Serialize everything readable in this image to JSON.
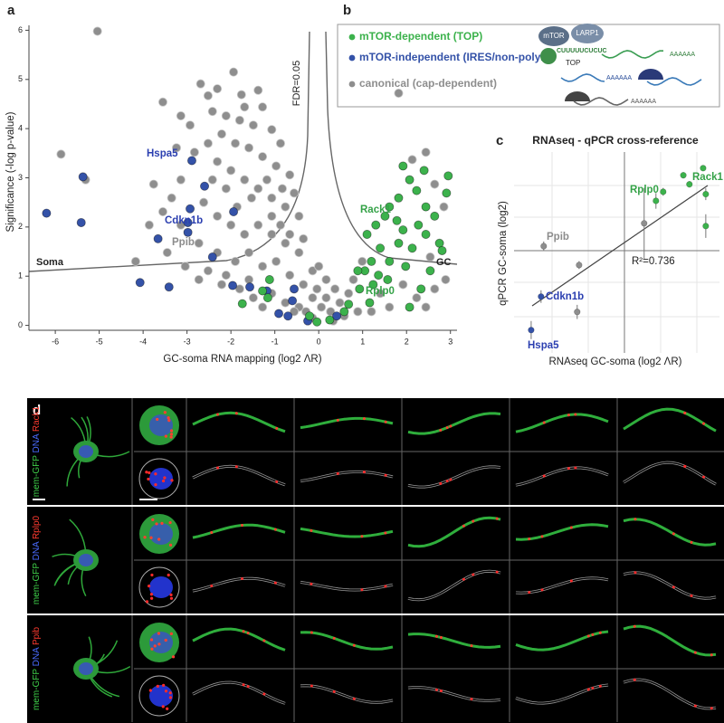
{
  "panel_labels": [
    "a",
    "b",
    "c",
    "d"
  ],
  "chart_data": [
    {
      "type": "scatter",
      "xlabel": "GC-soma RNA mapping (log2 ΛR)",
      "ylabel": "Significance (-log p-value)",
      "xlim": [
        -6.6,
        3.15
      ],
      "ylim": [
        -0.1,
        6.1
      ],
      "xticks": [
        -6,
        -5,
        -4,
        -3,
        -2,
        -1,
        0,
        1,
        2,
        3
      ],
      "yticks": [
        0,
        1,
        2,
        3,
        4,
        5,
        6
      ],
      "threshold_label": "FDR=0.05",
      "side_labels": [
        "Soma",
        "GC"
      ],
      "annotations": [
        {
          "text": "Hspa5",
          "color": "#2b3fb0"
        },
        {
          "text": "Cdkn1b",
          "color": "#2b3fb0"
        },
        {
          "text": "Ppib",
          "color": "#8c8c8c"
        },
        {
          "text": "Rack1",
          "color": "#34a247"
        },
        {
          "text": "Rplp0",
          "color": "#34a247"
        }
      ],
      "series": [
        {
          "name": "mTOR-dependent (TOP)",
          "color": "#3cb24c",
          "x": [
            -1.74,
            -1.28,
            -1.12,
            -1.16,
            -0.21,
            -0.04,
            0.25,
            0.58,
            0.68,
            0.93,
            1.05,
            1.2,
            1.4,
            1.51,
            1.61,
            1.78,
            1.92,
            2.07,
            2.23,
            2.44,
            2.64,
            2.95,
            2.91,
            2.27,
            1.82,
            1.61,
            1.36,
            1.24,
            1.16,
            1.57,
            1.98,
            2.13,
            2.44,
            2.75,
            1.82,
            1.92,
            2.4,
            2.81,
            2.33,
            2.54,
            2.07,
            0.89,
            1.1,
            1.3
          ],
          "values": [
            0.44,
            0.7,
            0.93,
            0.56,
            0.19,
            0.07,
            0.11,
            0.28,
            0.43,
            0.74,
            1.11,
            1.3,
            1.57,
            2.22,
            2.41,
            2.13,
            1.94,
            2.96,
            2.74,
            2.41,
            2.22,
            3.04,
            2.69,
            2.04,
            1.67,
            1.3,
            1.02,
            0.83,
            0.46,
            0.93,
            1.2,
            1.57,
            1.85,
            1.67,
            2.59,
            3.24,
            3.15,
            1.52,
            0.74,
            1.11,
            0.37,
            1.11,
            1.85,
            2.04
          ]
        },
        {
          "name": "mTOR-independent (IRES/non-polyA)",
          "color": "#3452a8",
          "x": [
            -6.2,
            -5.37,
            -5.41,
            -4.07,
            -3.41,
            -2.89,
            -2.93,
            -2.98,
            -3.66,
            -2.6,
            -2.98,
            -2.42,
            -1.96,
            -1.57,
            -1.94,
            -0.91,
            -0.7,
            -0.56,
            -0.6,
            -0.25,
            0.41,
            -1.18
          ],
          "values": [
            2.28,
            3.02,
            2.09,
            0.87,
            0.78,
            3.35,
            2.37,
            2.09,
            1.76,
            2.83,
            1.89,
            1.39,
            0.81,
            0.78,
            2.31,
            0.24,
            0.19,
            0.74,
            0.5,
            0.09,
            0.19,
            0.7
          ]
        },
        {
          "name": "canonical (cap-dependent)",
          "color": "#8e8e8e",
          "x": [
            -5.04,
            -5.87,
            -5.31,
            -2.69,
            -1.94,
            -2.52,
            -1.76,
            -1.38,
            -1.28,
            -2.42,
            -2.11,
            -1.8,
            -1.49,
            -1.07,
            -0.87,
            -2.21,
            -1.9,
            -1.59,
            -1.28,
            -0.97,
            -0.66,
            -2.52,
            -2.83,
            -2.31,
            -2.0,
            -1.69,
            -1.38,
            -1.07,
            -0.76,
            -0.45,
            -3.14,
            -3.35,
            -2.62,
            -2.31,
            -2.0,
            -1.69,
            -1.38,
            -1.07,
            -0.76,
            -0.45,
            -0.14,
            -2.73,
            -3.14,
            -3.55,
            -3.86,
            -2.31,
            -1.9,
            -1.59,
            -1.28,
            -0.97,
            -0.66,
            -0.35,
            -0.14,
            0.06,
            0.27,
            -0.45,
            -0.76,
            -1.07,
            -0.04,
            0.17,
            0.48,
            0.68,
            0.79,
            0.99,
            0.89,
            -2.11,
            -2.42,
            -2.93,
            -3.24,
            -3.76,
            -4.17,
            -3.45,
            -3.04,
            -2.52,
            -2.11,
            -1.59,
            -1.86,
            -1.53,
            -1.18,
            -0.83,
            -0.56,
            -1.69,
            -2.31,
            -3.14,
            -3.55,
            -0.66,
            -0.35,
            -1.07,
            -0.87,
            1.82,
            2.44,
            2.13,
            2.64,
            2.85,
            2.54,
            2.89,
            2.23,
            1.61,
            1.4,
            1.2,
            1.92,
            2.64,
            2.44,
            0.58,
            0.33,
            -0.14,
            -0.29,
            -0.56,
            -1.28,
            -1.49,
            -1.8,
            -2.21,
            -2.73,
            0.0,
            0.17,
            0.37
          ],
          "values": [
            5.98,
            3.48,
            2.96,
            4.91,
            5.15,
            4.67,
            4.69,
            4.78,
            4.44,
            4.35,
            4.26,
            4.17,
            4.07,
            3.98,
            3.7,
            3.89,
            3.7,
            3.61,
            3.43,
            3.24,
            3.06,
            3.7,
            3.52,
            3.33,
            3.15,
            2.96,
            2.78,
            2.59,
            2.41,
            2.22,
            2.96,
            2.59,
            2.5,
            2.22,
            2.04,
            1.85,
            2.04,
            1.85,
            1.67,
            1.48,
            1.11,
            1.67,
            2.04,
            2.31,
            2.04,
            1.48,
            1.3,
            1.48,
            1.2,
            1.3,
            1.02,
            0.83,
            0.56,
            0.37,
            0.28,
            0.37,
            0.46,
            0.65,
            0.74,
            0.56,
            0.46,
            0.65,
            0.93,
            1.3,
            0.28,
            2.78,
            2.96,
            4.07,
            3.61,
            2.87,
            1.3,
            1.48,
            1.2,
            1.11,
            1.02,
            0.93,
            2.41,
            2.59,
            2.96,
            2.78,
            2.69,
            4.44,
            4.81,
            4.26,
            4.54,
            1.85,
            1.76,
            2.22,
            2.04,
            4.72,
            3.52,
            3.37,
            2.87,
            2.41,
            1.39,
            0.93,
            0.56,
            0.37,
            0.65,
            0.28,
            0.83,
            0.74,
            0.37,
            0.19,
            0.09,
            0.15,
            0.28,
            0.28,
            0.37,
            0.56,
            0.74,
            0.83,
            0.93,
            1.2,
            0.93,
            0.74
          ]
        }
      ]
    },
    {
      "type": "scatter",
      "title": "RNAseq - qPCR cross-reference",
      "xlabel": "RNAseq GC-soma (log2 ΛR)",
      "ylabel": "qPCR GC-soma (log2)",
      "fit_label": "R²=0.736",
      "xlim": [
        -2.9,
        2.5
      ],
      "ylim": [
        -2.6,
        2.5
      ],
      "annotations": [
        {
          "text": "Ppib",
          "color": "#8c8c8c"
        },
        {
          "text": "Cdkn1b",
          "color": "#2b3fb0"
        },
        {
          "text": "Hspa5",
          "color": "#2b3fb0"
        },
        {
          "text": "Rplp0",
          "color": "#34a247"
        },
        {
          "text": "Rack1",
          "color": "#34a247"
        }
      ],
      "series": [
        {
          "color": "#3cb24c",
          "x": [
            0.83,
            1.02,
            1.55,
            1.71,
            2.07,
            2.14,
            2.14
          ],
          "values": [
            1.26,
            1.49,
            1.91,
            1.68,
            2.09,
            1.43,
            0.62
          ],
          "errors": [
            0.2,
            0.1,
            0.08,
            0.08,
            0.06,
            0.15,
            0.3
          ]
        },
        {
          "color": "#3452a8",
          "x": [
            -2.45,
            -2.19
          ],
          "values": [
            -2.02,
            -1.17
          ],
          "errors": [
            0.23,
            0.16
          ]
        },
        {
          "color": "#8e8e8e",
          "x": [
            -1.24,
            -1.19,
            -2.12,
            0.52
          ],
          "values": [
            -1.56,
            -0.37,
            0.11,
            0.69
          ],
          "errors": [
            0.18,
            0.1,
            0.12,
            0.9
          ]
        }
      ]
    }
  ],
  "pathway_box": {
    "proteins": [
      "mTOR",
      "LARP1"
    ],
    "motif": "CUUUUUCUCUC",
    "motif_name": "TOP",
    "polyA_labels": [
      "AAAAAA",
      "AAAAAA",
      "AAAAAA"
    ]
  },
  "micrographs": {
    "rows": [
      {
        "stain": [
          "mem-GFP",
          "DNA",
          "Rack1"
        ]
      },
      {
        "stain": [
          "mem-GFP",
          "DNA",
          "Rplp0"
        ]
      },
      {
        "stain": [
          "mem-GFP",
          "DNA",
          "Ppib"
        ]
      }
    ]
  }
}
